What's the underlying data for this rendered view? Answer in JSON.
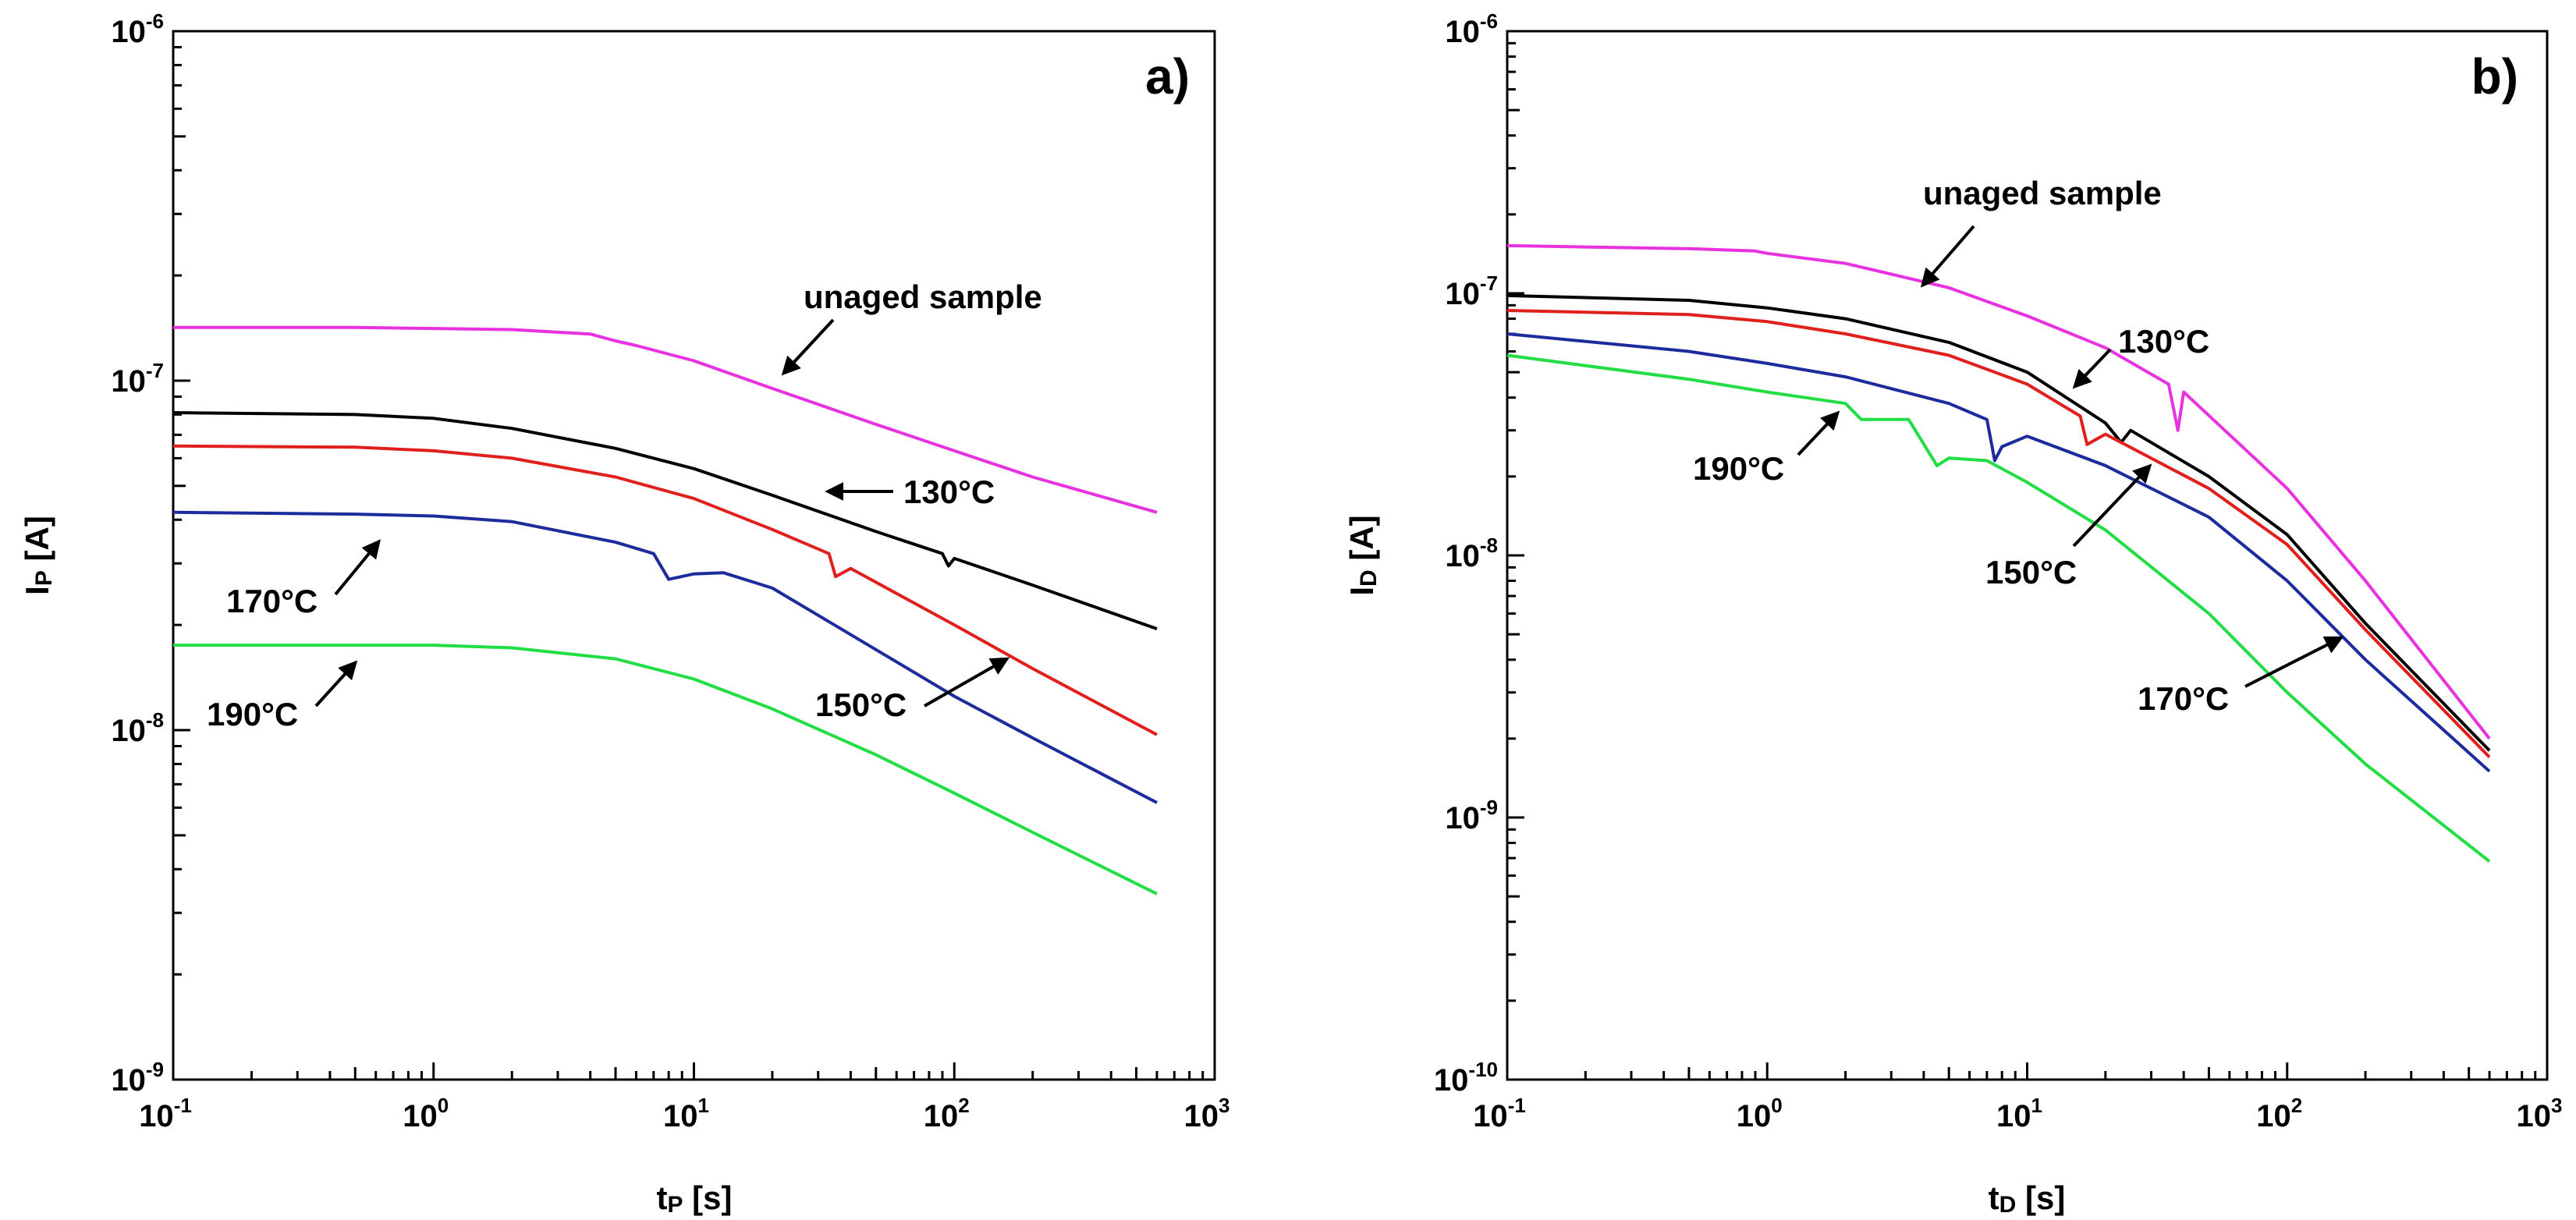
{
  "chart_data": [
    {
      "type": "line",
      "panel_label": "a)",
      "xlabel": {
        "main": "t",
        "sub": "P",
        "unit": " [s]"
      },
      "ylabel": {
        "main": "I",
        "sub": "P",
        "unit": " [A]"
      },
      "x_scale": "log",
      "y_scale": "log",
      "xlim": [
        0.1,
        1000
      ],
      "ylim": [
        1e-09,
        1e-06
      ],
      "x_ticks": [
        {
          "base": "10",
          "exp": "-1"
        },
        {
          "base": "10",
          "exp": "0"
        },
        {
          "base": "10",
          "exp": "1"
        },
        {
          "base": "10",
          "exp": "2"
        },
        {
          "base": "10",
          "exp": "3"
        }
      ],
      "y_ticks": [
        {
          "base": "10",
          "exp": "-9"
        },
        {
          "base": "10",
          "exp": "-8"
        },
        {
          "base": "10",
          "exp": "-7"
        },
        {
          "base": "10",
          "exp": "-6"
        }
      ],
      "grid": false,
      "series": [
        {
          "name": "unaged sample",
          "color": "#e832e0",
          "points": [
            [
              0.1,
              1.42e-07
            ],
            [
              0.5,
              1.42e-07
            ],
            [
              1,
              1.41e-07
            ],
            [
              2,
              1.4e-07
            ],
            [
              4,
              1.36e-07
            ],
            [
              5,
              1.3e-07
            ],
            [
              6,
              1.26e-07
            ],
            [
              10,
              1.14e-07
            ],
            [
              20,
              9.5e-08
            ],
            [
              50,
              7.5e-08
            ],
            [
              100,
              6.3e-08
            ],
            [
              200,
              5.3e-08
            ],
            [
              600,
              4.2e-08
            ]
          ]
        },
        {
          "name": "130°C",
          "color": "#000000",
          "points": [
            [
              0.1,
              8.1e-08
            ],
            [
              0.5,
              8e-08
            ],
            [
              1,
              7.8e-08
            ],
            [
              2,
              7.3e-08
            ],
            [
              5,
              6.4e-08
            ],
            [
              10,
              5.6e-08
            ],
            [
              20,
              4.7e-08
            ],
            [
              50,
              3.7e-08
            ],
            [
              90,
              3.2e-08
            ],
            [
              95,
              2.95e-08
            ],
            [
              100,
              3.1e-08
            ],
            [
              200,
              2.6e-08
            ],
            [
              600,
              1.95e-08
            ]
          ]
        },
        {
          "name": "150°C",
          "color": "#e0201c",
          "points": [
            [
              0.1,
              6.5e-08
            ],
            [
              0.5,
              6.45e-08
            ],
            [
              1,
              6.3e-08
            ],
            [
              2,
              6e-08
            ],
            [
              5,
              5.3e-08
            ],
            [
              10,
              4.6e-08
            ],
            [
              20,
              3.75e-08
            ],
            [
              33,
              3.2e-08
            ],
            [
              35,
              2.75e-08
            ],
            [
              40,
              2.9e-08
            ],
            [
              100,
              2e-08
            ],
            [
              200,
              1.5e-08
            ],
            [
              600,
              9.7e-09
            ]
          ]
        },
        {
          "name": "170°C",
          "color": "#1c2c9c",
          "points": [
            [
              0.1,
              4.2e-08
            ],
            [
              0.5,
              4.15e-08
            ],
            [
              1,
              4.1e-08
            ],
            [
              2,
              3.95e-08
            ],
            [
              5,
              3.45e-08
            ],
            [
              7,
              3.2e-08
            ],
            [
              8,
              2.7e-08
            ],
            [
              10,
              2.8e-08
            ],
            [
              13,
              2.82e-08
            ],
            [
              20,
              2.55e-08
            ],
            [
              50,
              1.7e-08
            ],
            [
              100,
              1.25e-08
            ],
            [
              200,
              9.5e-09
            ],
            [
              600,
              6.2e-09
            ]
          ]
        },
        {
          "name": "190°C",
          "color": "#22dd44",
          "points": [
            [
              0.1,
              1.75e-08
            ],
            [
              1,
              1.75e-08
            ],
            [
              2,
              1.72e-08
            ],
            [
              5,
              1.6e-08
            ],
            [
              10,
              1.4e-08
            ],
            [
              20,
              1.15e-08
            ],
            [
              50,
              8.5e-09
            ],
            [
              100,
              6.6e-09
            ],
            [
              200,
              5.1e-09
            ],
            [
              600,
              3.4e-09
            ]
          ]
        }
      ],
      "annotations": [
        "unaged sample",
        "130°C",
        "170°C",
        "190°C",
        "150°C"
      ]
    },
    {
      "type": "line",
      "panel_label": "b)",
      "xlabel": {
        "main": "t",
        "sub": "D",
        "unit": " [s]"
      },
      "ylabel": {
        "main": "I",
        "sub": "D",
        "unit": " [A]"
      },
      "x_scale": "log",
      "y_scale": "log",
      "xlim": [
        0.1,
        1000
      ],
      "ylim": [
        1e-10,
        1e-06
      ],
      "x_ticks": [
        {
          "base": "10",
          "exp": "-1"
        },
        {
          "base": "10",
          "exp": "0"
        },
        {
          "base": "10",
          "exp": "1"
        },
        {
          "base": "10",
          "exp": "2"
        },
        {
          "base": "10",
          "exp": "3"
        }
      ],
      "y_ticks": [
        {
          "base": "10",
          "exp": "-10"
        },
        {
          "base": "10",
          "exp": "-9"
        },
        {
          "base": "10",
          "exp": "-8"
        },
        {
          "base": "10",
          "exp": "-7"
        },
        {
          "base": "10",
          "exp": "-6"
        }
      ],
      "grid": false,
      "series": [
        {
          "name": "unaged sample",
          "color": "#e832e0",
          "points": [
            [
              0.1,
              1.52e-07
            ],
            [
              0.5,
              1.48e-07
            ],
            [
              0.9,
              1.45e-07
            ],
            [
              1,
              1.42e-07
            ],
            [
              2,
              1.3e-07
            ],
            [
              5,
              1.05e-07
            ],
            [
              10,
              8.2e-08
            ],
            [
              20,
              6.2e-08
            ],
            [
              35,
              4.5e-08
            ],
            [
              38,
              3e-08
            ],
            [
              40,
              4.2e-08
            ],
            [
              100,
              1.8e-08
            ],
            [
              200,
              8e-09
            ],
            [
              600,
              2e-09
            ]
          ]
        },
        {
          "name": "130°C",
          "color": "#000000",
          "points": [
            [
              0.1,
              9.8e-08
            ],
            [
              0.5,
              9.4e-08
            ],
            [
              1,
              8.8e-08
            ],
            [
              2,
              8e-08
            ],
            [
              5,
              6.5e-08
            ],
            [
              10,
              5e-08
            ],
            [
              20,
              3.2e-08
            ],
            [
              23,
              2.7e-08
            ],
            [
              25,
              3e-08
            ],
            [
              50,
              2e-08
            ],
            [
              100,
              1.2e-08
            ],
            [
              200,
              5.5e-09
            ],
            [
              600,
              1.8e-09
            ]
          ]
        },
        {
          "name": "150°C",
          "color": "#e0201c",
          "points": [
            [
              0.1,
              8.6e-08
            ],
            [
              0.5,
              8.3e-08
            ],
            [
              1,
              7.8e-08
            ],
            [
              2,
              7e-08
            ],
            [
              5,
              5.8e-08
            ],
            [
              10,
              4.5e-08
            ],
            [
              16,
              3.4e-08
            ],
            [
              17,
              2.65e-08
            ],
            [
              20,
              2.9e-08
            ],
            [
              50,
              1.8e-08
            ],
            [
              100,
              1.1e-08
            ],
            [
              200,
              5.2e-09
            ],
            [
              600,
              1.7e-09
            ]
          ]
        },
        {
          "name": "170°C",
          "color": "#1c2c9c",
          "points": [
            [
              0.1,
              7e-08
            ],
            [
              0.5,
              6e-08
            ],
            [
              1,
              5.4e-08
            ],
            [
              2,
              4.8e-08
            ],
            [
              5,
              3.8e-08
            ],
            [
              7,
              3.3e-08
            ],
            [
              7.5,
              2.3e-08
            ],
            [
              8,
              2.6e-08
            ],
            [
              10,
              2.85e-08
            ],
            [
              20,
              2.2e-08
            ],
            [
              50,
              1.4e-08
            ],
            [
              100,
              8e-09
            ],
            [
              200,
              4e-09
            ],
            [
              600,
              1.5e-09
            ]
          ]
        },
        {
          "name": "190°C",
          "color": "#22dd44",
          "points": [
            [
              0.1,
              5.8e-08
            ],
            [
              0.5,
              4.7e-08
            ],
            [
              1,
              4.2e-08
            ],
            [
              2,
              3.8e-08
            ],
            [
              2.3,
              3.3e-08
            ],
            [
              3.5,
              3.3e-08
            ],
            [
              4.5,
              2.2e-08
            ],
            [
              5,
              2.35e-08
            ],
            [
              7,
              2.3e-08
            ],
            [
              10,
              1.9e-08
            ],
            [
              20,
              1.25e-08
            ],
            [
              50,
              6e-09
            ],
            [
              100,
              3e-09
            ],
            [
              200,
              1.6e-09
            ],
            [
              600,
              6.8e-10
            ]
          ]
        }
      ],
      "annotations": [
        "unaged sample",
        "130°C",
        "190°C",
        "150°C",
        "170°C"
      ]
    }
  ]
}
